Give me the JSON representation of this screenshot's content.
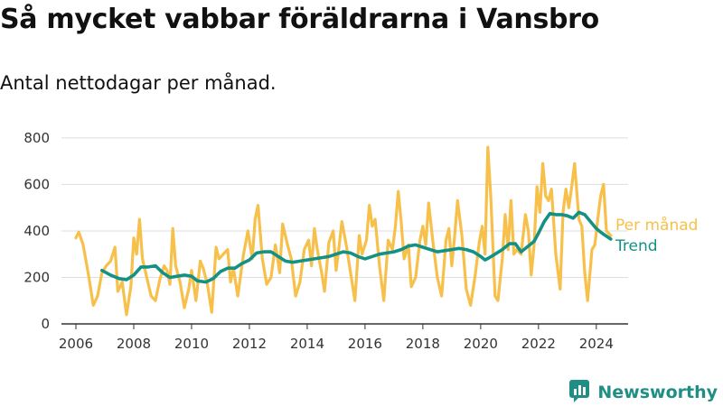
{
  "header": {
    "title": "Så mycket vabbar föräldrarna i Vansbro",
    "subtitle": "Antal nettodagar per månad."
  },
  "brand": {
    "name": "Newsworthy",
    "icon": "newsworthy-logo-icon",
    "color": "#1f8f85"
  },
  "colors": {
    "monthly": "#f7c04a",
    "trend": "#149185",
    "grid": "#dddddd",
    "axis": "#333333"
  },
  "chart_data": {
    "type": "line",
    "title": "Så mycket vabbar föräldrarna i Vansbro",
    "subtitle": "Antal nettodagar per månad.",
    "xlim": [
      2005.5,
      2025.1
    ],
    "ylim": [
      0,
      850
    ],
    "x_ticks": [
      2006,
      2008,
      2010,
      2012,
      2014,
      2016,
      2018,
      2020,
      2022,
      2024
    ],
    "x_tick_labels": [
      "2006",
      "2008",
      "2010",
      "2012",
      "2014",
      "2016",
      "2018",
      "2020",
      "2022",
      "2024"
    ],
    "y_ticks": [
      0,
      200,
      400,
      600,
      800
    ],
    "y_tick_labels": [
      "0",
      "200",
      "400",
      "600",
      "800"
    ],
    "grid": "horizontal",
    "series": [
      {
        "name": "Per månad",
        "color": "#f7c04a",
        "points": [
          [
            2006.0,
            370
          ],
          [
            2006.1,
            395
          ],
          [
            2006.25,
            340
          ],
          [
            2006.45,
            200
          ],
          [
            2006.6,
            80
          ],
          [
            2006.75,
            120
          ],
          [
            2006.9,
            220
          ],
          [
            2007.05,
            250
          ],
          [
            2007.2,
            270
          ],
          [
            2007.35,
            330
          ],
          [
            2007.45,
            140
          ],
          [
            2007.6,
            180
          ],
          [
            2007.75,
            40
          ],
          [
            2007.9,
            160
          ],
          [
            2008.0,
            370
          ],
          [
            2008.1,
            300
          ],
          [
            2008.2,
            450
          ],
          [
            2008.3,
            280
          ],
          [
            2008.45,
            200
          ],
          [
            2008.6,
            120
          ],
          [
            2008.75,
            100
          ],
          [
            2008.9,
            190
          ],
          [
            2009.05,
            250
          ],
          [
            2009.15,
            230
          ],
          [
            2009.25,
            170
          ],
          [
            2009.35,
            410
          ],
          [
            2009.45,
            250
          ],
          [
            2009.6,
            180
          ],
          [
            2009.75,
            70
          ],
          [
            2009.9,
            150
          ],
          [
            2010.0,
            230
          ],
          [
            2010.15,
            100
          ],
          [
            2010.3,
            270
          ],
          [
            2010.4,
            240
          ],
          [
            2010.55,
            170
          ],
          [
            2010.7,
            50
          ],
          [
            2010.85,
            330
          ],
          [
            2010.95,
            280
          ],
          [
            2011.1,
            300
          ],
          [
            2011.25,
            320
          ],
          [
            2011.35,
            180
          ],
          [
            2011.45,
            240
          ],
          [
            2011.6,
            120
          ],
          [
            2011.8,
            300
          ],
          [
            2011.95,
            400
          ],
          [
            2012.1,
            280
          ],
          [
            2012.2,
            450
          ],
          [
            2012.3,
            510
          ],
          [
            2012.45,
            280
          ],
          [
            2012.6,
            170
          ],
          [
            2012.75,
            200
          ],
          [
            2012.9,
            340
          ],
          [
            2013.05,
            220
          ],
          [
            2013.15,
            430
          ],
          [
            2013.3,
            350
          ],
          [
            2013.45,
            280
          ],
          [
            2013.6,
            120
          ],
          [
            2013.75,
            180
          ],
          [
            2013.9,
            320
          ],
          [
            2014.05,
            360
          ],
          [
            2014.15,
            250
          ],
          [
            2014.25,
            410
          ],
          [
            2014.35,
            320
          ],
          [
            2014.5,
            220
          ],
          [
            2014.6,
            140
          ],
          [
            2014.75,
            350
          ],
          [
            2014.9,
            400
          ],
          [
            2015.0,
            230
          ],
          [
            2015.1,
            330
          ],
          [
            2015.2,
            440
          ],
          [
            2015.35,
            340
          ],
          [
            2015.5,
            220
          ],
          [
            2015.65,
            100
          ],
          [
            2015.8,
            380
          ],
          [
            2015.9,
            300
          ],
          [
            2016.05,
            360
          ],
          [
            2016.15,
            510
          ],
          [
            2016.25,
            420
          ],
          [
            2016.35,
            450
          ],
          [
            2016.5,
            250
          ],
          [
            2016.65,
            100
          ],
          [
            2016.8,
            360
          ],
          [
            2016.95,
            320
          ],
          [
            2017.05,
            420
          ],
          [
            2017.15,
            570
          ],
          [
            2017.25,
            440
          ],
          [
            2017.35,
            280
          ],
          [
            2017.5,
            340
          ],
          [
            2017.6,
            160
          ],
          [
            2017.75,
            200
          ],
          [
            2017.9,
            360
          ],
          [
            2018.0,
            420
          ],
          [
            2018.1,
            340
          ],
          [
            2018.2,
            520
          ],
          [
            2018.35,
            350
          ],
          [
            2018.5,
            200
          ],
          [
            2018.65,
            120
          ],
          [
            2018.8,
            360
          ],
          [
            2018.9,
            410
          ],
          [
            2019.0,
            250
          ],
          [
            2019.1,
            380
          ],
          [
            2019.2,
            530
          ],
          [
            2019.35,
            380
          ],
          [
            2019.5,
            150
          ],
          [
            2019.65,
            80
          ],
          [
            2019.8,
            200
          ],
          [
            2019.95,
            350
          ],
          [
            2020.05,
            420
          ],
          [
            2020.15,
            300
          ],
          [
            2020.25,
            760
          ],
          [
            2020.35,
            550
          ],
          [
            2020.5,
            120
          ],
          [
            2020.6,
            100
          ],
          [
            2020.75,
            280
          ],
          [
            2020.85,
            470
          ],
          [
            2020.95,
            320
          ],
          [
            2021.05,
            530
          ],
          [
            2021.15,
            300
          ],
          [
            2021.25,
            320
          ],
          [
            2021.4,
            300
          ],
          [
            2021.55,
            470
          ],
          [
            2021.65,
            400
          ],
          [
            2021.75,
            210
          ],
          [
            2021.85,
            340
          ],
          [
            2021.95,
            590
          ],
          [
            2022.05,
            480
          ],
          [
            2022.15,
            690
          ],
          [
            2022.25,
            550
          ],
          [
            2022.35,
            530
          ],
          [
            2022.45,
            580
          ],
          [
            2022.6,
            300
          ],
          [
            2022.75,
            150
          ],
          [
            2022.85,
            480
          ],
          [
            2022.95,
            580
          ],
          [
            2023.05,
            500
          ],
          [
            2023.15,
            590
          ],
          [
            2023.25,
            690
          ],
          [
            2023.4,
            450
          ],
          [
            2023.5,
            420
          ],
          [
            2023.6,
            220
          ],
          [
            2023.7,
            100
          ],
          [
            2023.85,
            320
          ],
          [
            2023.95,
            340
          ],
          [
            2024.05,
            450
          ],
          [
            2024.15,
            550
          ],
          [
            2024.25,
            600
          ],
          [
            2024.35,
            400
          ],
          [
            2024.5,
            380
          ]
        ]
      },
      {
        "name": "Trend",
        "color": "#149185",
        "points": [
          [
            2006.9,
            230
          ],
          [
            2007.2,
            210
          ],
          [
            2007.5,
            195
          ],
          [
            2007.75,
            190
          ],
          [
            2008.0,
            210
          ],
          [
            2008.25,
            245
          ],
          [
            2008.5,
            245
          ],
          [
            2008.75,
            250
          ],
          [
            2009.0,
            220
          ],
          [
            2009.25,
            200
          ],
          [
            2009.5,
            205
          ],
          [
            2009.75,
            210
          ],
          [
            2010.0,
            205
          ],
          [
            2010.2,
            185
          ],
          [
            2010.5,
            180
          ],
          [
            2010.75,
            195
          ],
          [
            2011.0,
            225
          ],
          [
            2011.25,
            240
          ],
          [
            2011.5,
            240
          ],
          [
            2011.75,
            260
          ],
          [
            2012.0,
            275
          ],
          [
            2012.25,
            305
          ],
          [
            2012.5,
            310
          ],
          [
            2012.75,
            310
          ],
          [
            2013.0,
            290
          ],
          [
            2013.25,
            270
          ],
          [
            2013.5,
            265
          ],
          [
            2013.75,
            270
          ],
          [
            2014.0,
            275
          ],
          [
            2014.25,
            280
          ],
          [
            2014.5,
            285
          ],
          [
            2014.75,
            290
          ],
          [
            2015.0,
            300
          ],
          [
            2015.25,
            310
          ],
          [
            2015.5,
            305
          ],
          [
            2015.75,
            290
          ],
          [
            2016.0,
            280
          ],
          [
            2016.25,
            290
          ],
          [
            2016.5,
            300
          ],
          [
            2016.75,
            305
          ],
          [
            2017.0,
            310
          ],
          [
            2017.25,
            320
          ],
          [
            2017.5,
            335
          ],
          [
            2017.75,
            340
          ],
          [
            2018.0,
            330
          ],
          [
            2018.25,
            320
          ],
          [
            2018.5,
            310
          ],
          [
            2018.75,
            315
          ],
          [
            2019.0,
            320
          ],
          [
            2019.25,
            325
          ],
          [
            2019.5,
            320
          ],
          [
            2019.75,
            310
          ],
          [
            2020.0,
            290
          ],
          [
            2020.15,
            275
          ],
          [
            2020.3,
            285
          ],
          [
            2020.5,
            300
          ],
          [
            2020.75,
            320
          ],
          [
            2021.0,
            345
          ],
          [
            2021.2,
            345
          ],
          [
            2021.4,
            310
          ],
          [
            2021.6,
            330
          ],
          [
            2021.85,
            355
          ],
          [
            2022.0,
            390
          ],
          [
            2022.2,
            440
          ],
          [
            2022.4,
            475
          ],
          [
            2022.6,
            470
          ],
          [
            2022.8,
            470
          ],
          [
            2023.0,
            465
          ],
          [
            2023.2,
            455
          ],
          [
            2023.4,
            480
          ],
          [
            2023.6,
            470
          ],
          [
            2023.8,
            440
          ],
          [
            2024.0,
            410
          ],
          [
            2024.2,
            390
          ],
          [
            2024.5,
            365
          ]
        ]
      }
    ]
  }
}
